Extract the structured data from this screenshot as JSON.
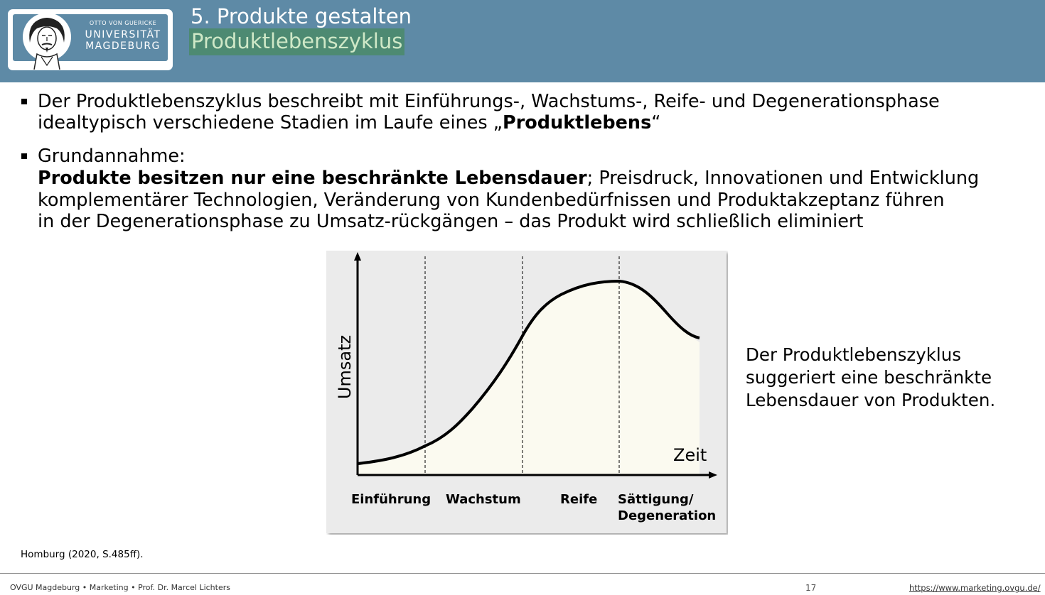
{
  "header": {
    "title_line1": "5. Produkte gestalten",
    "title_line2": "Produktlebenszyklus",
    "logo": {
      "small": "OTTO VON GUERICKE",
      "line1": "UNIVERSITÄT",
      "line2": "MAGDEBURG"
    }
  },
  "bullets": {
    "b1": {
      "line1": "Der Produktlebenszyklus beschreibt mit Einführungs-, Wachstums-, Reife- und Degenerationsphase",
      "line2_before": "idealtypisch verschiedene Stadien im Laufe eines „",
      "line2_bold": "Produktlebens",
      "line2_after": "“"
    },
    "b2": {
      "line1": "Grundannahme:",
      "line2_bold": "Produkte besitzen nur eine beschränkte Lebensdauer",
      "line2_after": "; Preisdruck, Innovationen und Entwicklung",
      "line3": "komplementärer Technologien, Veränderung von Kundenbedürfnissen und Produktakzeptanz führen",
      "line4": "in der Degenerationsphase zu Umsatz-rückgängen – das Produkt wird schließlich eliminiert"
    }
  },
  "diagram": {
    "y_label": "Umsatz",
    "x_label": "Zeit",
    "phases": [
      {
        "label": "Einführung"
      },
      {
        "label": "Wachstum"
      },
      {
        "label": "Reife"
      },
      {
        "label_line1": "Sättigung/",
        "label_line2": "Degeneration"
      }
    ]
  },
  "side_text": {
    "line1": "Der Produktlebenszyklus",
    "line2": "suggeriert eine beschränkte",
    "line3": "Lebensdauer von Produkten."
  },
  "source": "Homburg (2020, S.485ff).",
  "footer": {
    "left": "OVGU Magdeburg • Marketing • Prof. Dr. Marcel Lichters",
    "page": "17",
    "url": "https://www.marketing.ovgu.de/"
  }
}
